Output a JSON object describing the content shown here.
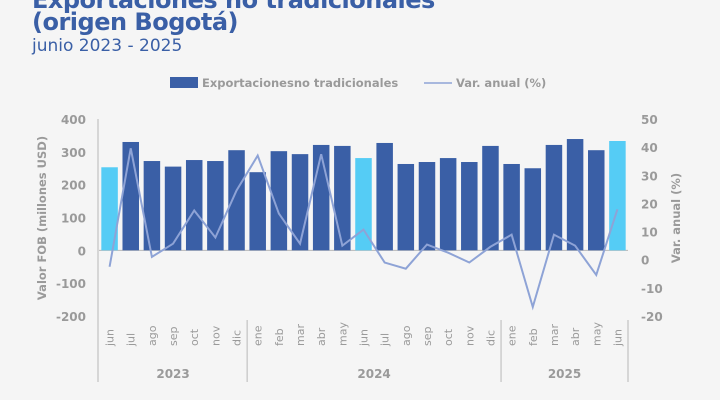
{
  "header": {
    "title_line1": "Exportaciones no tradicionales",
    "title_line2": "(origen Bogotá)",
    "subtitle": "junio 2023 - 2025"
  },
  "colors": {
    "bar": "#3a5fa6",
    "bar_highlight": "#55ccf5",
    "line": "#8ea3d6",
    "title": "#3a5fa6",
    "text": "#9a9a9a"
  },
  "chart_data": {
    "type": "bar",
    "title": "Exportaciones no tradicionales (origen Bogotá) junio 2023 - 2025",
    "ylabel": "Valor FOB (millones USD)",
    "y2label": "Var. anual (%)",
    "ylim": [
      -200,
      400
    ],
    "y2lim": [
      -20,
      50
    ],
    "yticks": [
      "400",
      "300",
      "200",
      "100",
      "0",
      "-100",
      "-200"
    ],
    "y2ticks": [
      "50",
      "40",
      "30",
      "20",
      "10",
      "0",
      "-10",
      "-20"
    ],
    "legend": {
      "position": "top",
      "bar_label": "Exportacionesno tradicionales",
      "line_label": "Var. anual (%)"
    },
    "categories": [
      "jun",
      "jul",
      "ago",
      "sep",
      "oct",
      "nov",
      "dic",
      "ene",
      "feb",
      "mar",
      "abr",
      "may",
      "jun",
      "jul",
      "ago",
      "sep",
      "oct",
      "nov",
      "dic",
      "ene",
      "feb",
      "mar",
      "abr",
      "may",
      "jun"
    ],
    "years": [
      {
        "label": "2023",
        "count": 7
      },
      {
        "label": "2024",
        "count": 12
      },
      {
        "label": "2025",
        "count": 6
      }
    ],
    "highlight_indices": [
      0,
      12,
      24
    ],
    "series": [
      {
        "name": "Exportacionesno tradicionales",
        "type": "bar",
        "axis": "left",
        "values": [
          253,
          330,
          272,
          255,
          275,
          272,
          305,
          238,
          302,
          293,
          321,
          318,
          281,
          327,
          263,
          269,
          281,
          269,
          318,
          263,
          250,
          321,
          339,
          305,
          333
        ]
      },
      {
        "name": "Var. anual (%)",
        "type": "line",
        "axis": "right",
        "values": [
          -2.5,
          39.6,
          1.0,
          5.7,
          17.5,
          7.9,
          24.6,
          37.0,
          16.4,
          5.7,
          37.5,
          5.0,
          10.7,
          -1.0,
          -3.2,
          5.4,
          2.5,
          -1.0,
          4.6,
          8.9,
          -16.8,
          8.9,
          5.0,
          -5.4,
          17.9
        ]
      }
    ]
  }
}
